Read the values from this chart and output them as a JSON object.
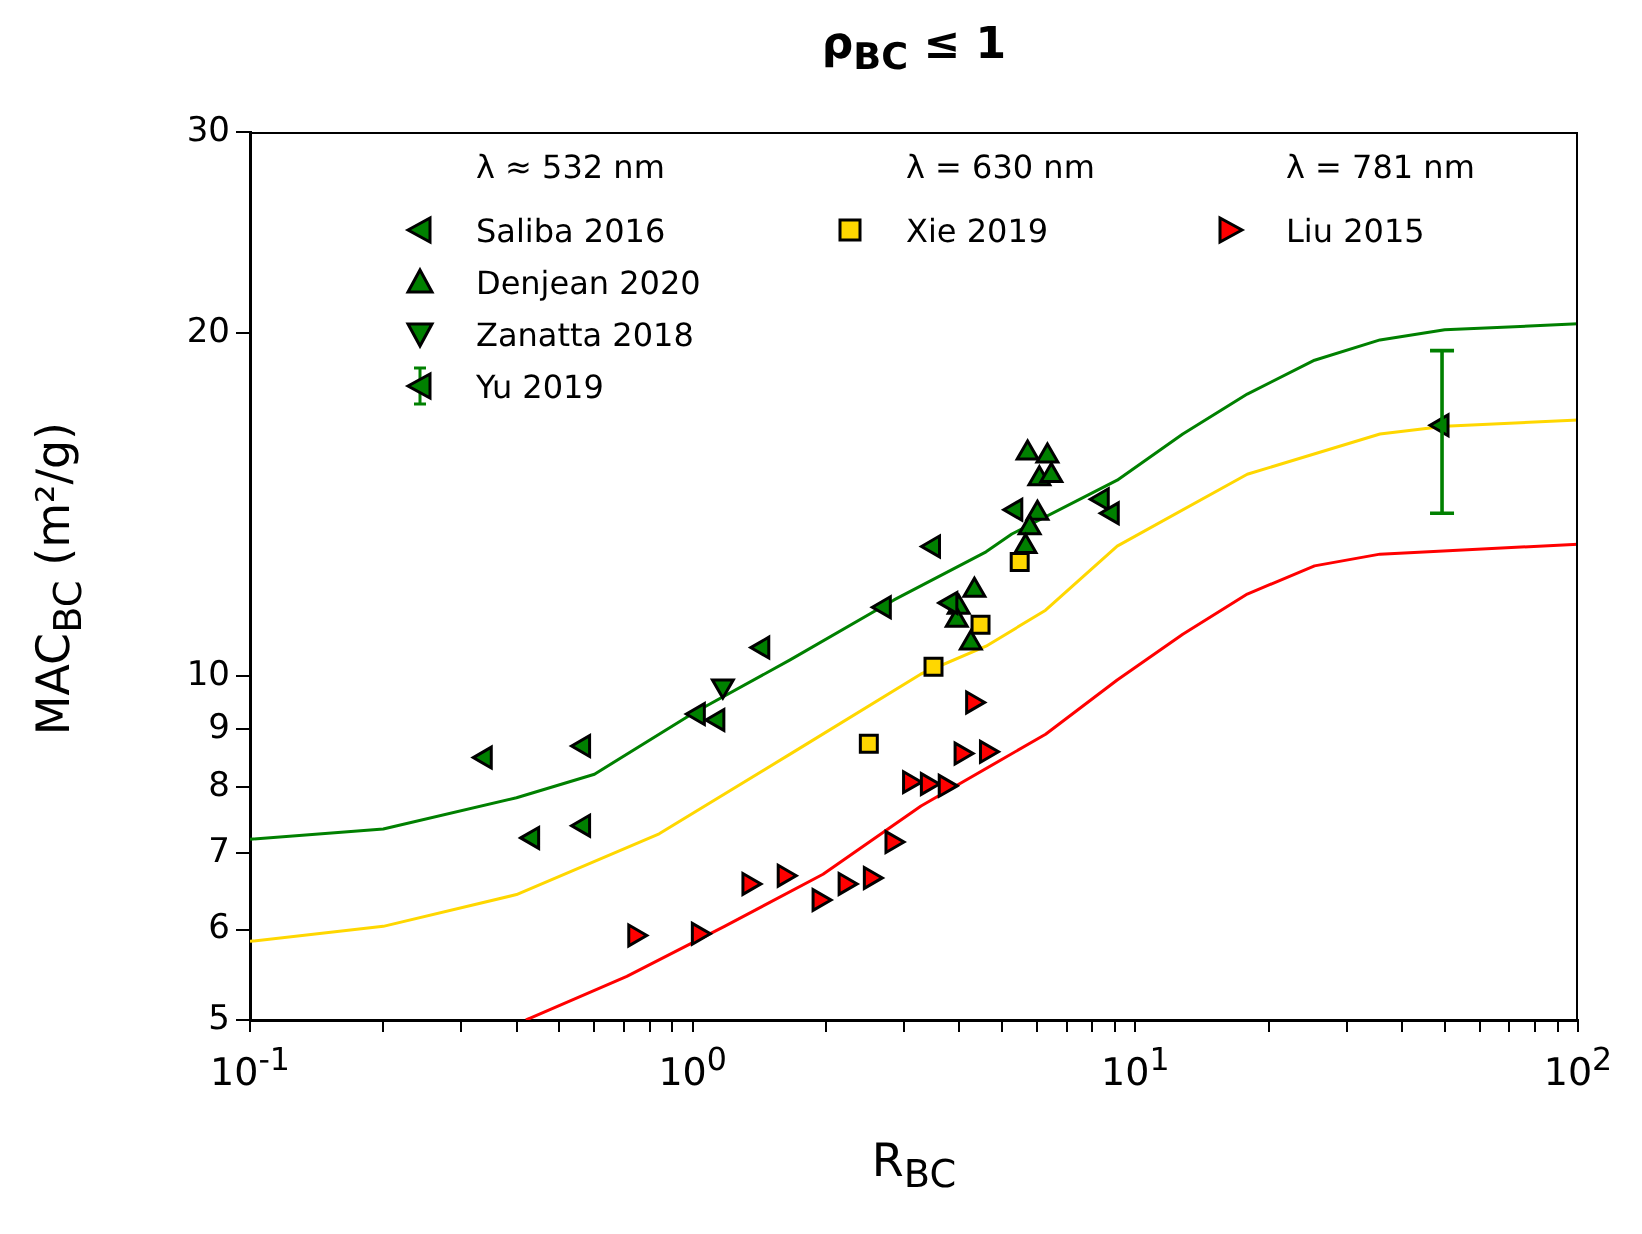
{
  "chart_data": {
    "type": "scatter",
    "title": "ρ$_{BC}$ ≤ 1",
    "xlabel": "R$_{BC}$",
    "ylabel": "MAC$_{BC}$ (m²/g)",
    "annotations": [
      "λ ≈ 532 nm",
      "λ = 630 nm",
      "λ = 781 nm"
    ],
    "log": "xy",
    "grid": false,
    "legend": "top",
    "xlim": [
      0.1,
      100
    ],
    "ylim": [
      5,
      30
    ],
    "xticks": [
      {
        "value": 0.1,
        "label": "10$^{-1}$"
      },
      {
        "value": 0.2,
        "label": null
      },
      {
        "value": 0.3,
        "label": null
      },
      {
        "value": 0.4,
        "label": null
      },
      {
        "value": 0.5,
        "label": null
      },
      {
        "value": 0.6,
        "label": null
      },
      {
        "value": 0.7,
        "label": null
      },
      {
        "value": 0.8,
        "label": null
      },
      {
        "value": 0.9,
        "label": null
      },
      {
        "value": 1,
        "label": "10$^{0}$"
      },
      {
        "value": 2,
        "label": null
      },
      {
        "value": 3,
        "label": null
      },
      {
        "value": 4,
        "label": null
      },
      {
        "value": 5,
        "label": null
      },
      {
        "value": 6,
        "label": null
      },
      {
        "value": 7,
        "label": null
      },
      {
        "value": 8,
        "label": null
      },
      {
        "value": 9,
        "label": null
      },
      {
        "value": 10,
        "label": "10$^{1}$"
      },
      {
        "value": 20,
        "label": null
      },
      {
        "value": 30,
        "label": null
      },
      {
        "value": 40,
        "label": null
      },
      {
        "value": 50,
        "label": null
      },
      {
        "value": 60,
        "label": null
      },
      {
        "value": 70,
        "label": null
      },
      {
        "value": 80,
        "label": null
      },
      {
        "value": 90,
        "label": null
      },
      {
        "value": 100,
        "label": "10$^{2}$"
      }
    ],
    "yticks": [
      5,
      6,
      7,
      8,
      9,
      10,
      20,
      30
    ],
    "series": [
      {
        "name": "Saliba 2016",
        "color": "#008000",
        "marker": "triangle-left",
        "x": [
          0.34,
          0.435,
          0.567,
          0.567,
          1.03,
          1.14,
          1.44,
          2.71,
          3.5,
          3.83,
          5.37,
          8.42,
          8.87
        ],
        "values": [
          8.49,
          7.22,
          8.69,
          7.4,
          9.27,
          9.16,
          10.6,
          11.5,
          13.0,
          11.6,
          14.0,
          14.3,
          13.9
        ]
      },
      {
        "name": "Denjean 2020",
        "color": "#008000",
        "marker": "triangle",
        "x": [
          5.71,
          6.33,
          6.07,
          6.46,
          6.01,
          5.77,
          5.65,
          4.33,
          3.99,
          3.95,
          4.25
        ],
        "values": [
          15.7,
          15.6,
          14.9,
          15.0,
          13.9,
          13.5,
          13.0,
          11.9,
          11.5,
          11.2,
          10.7
        ]
      },
      {
        "name": "Zanatta 2018",
        "color": "#008000",
        "marker": "triangle-down",
        "x": [
          1.17
        ],
        "values": [
          9.81
        ]
      },
      {
        "name": "Yu 2019",
        "color": "#008000",
        "marker": "triangle-left",
        "x": [
          49.3
        ],
        "values": [
          16.6
        ],
        "errors": [
          [
            13.9,
            19.3
          ]
        ]
      },
      {
        "name": "Xie 2019",
        "color": "#ffd700",
        "marker": "square",
        "x": [
          2.5,
          3.5,
          4.47,
          5.48
        ],
        "values": [
          8.73,
          10.2,
          11.1,
          12.6
        ]
      },
      {
        "name": "Liu 2015",
        "color": "#ff0000",
        "marker": "triangle-right",
        "x": [
          0.74,
          1.03,
          1.34,
          1.61,
          1.93,
          2.21,
          2.52,
          2.82,
          3.09,
          3.39,
          3.72,
          4.04,
          4.61,
          4.29
        ],
        "values": [
          5.93,
          5.95,
          6.58,
          6.69,
          6.37,
          6.58,
          6.66,
          7.16,
          8.08,
          8.05,
          8.02,
          8.56,
          8.59,
          9.49
        ]
      },
      {
        "type": "line",
        "color": "#008000",
        "marker": "none",
        "x": [
          0.1,
          0.2,
          0.4,
          0.6,
          1.0,
          1.66,
          2.85,
          4.6,
          5.26,
          9.1,
          12.8,
          17.9,
          25.4,
          35.7,
          50,
          100
        ],
        "values": [
          7.2,
          7.35,
          7.83,
          8.21,
          9.28,
          10.34,
          11.67,
          12.86,
          13.33,
          14.86,
          16.31,
          17.68,
          18.93,
          19.72,
          20.13,
          20.37
        ]
      },
      {
        "type": "line",
        "color": "#ffd700",
        "marker": "none",
        "x": [
          0.1,
          0.2,
          0.4,
          0.84,
          1.66,
          3.28,
          4.6,
          6.27,
          9.1,
          17.9,
          35.7,
          50,
          100
        ],
        "values": [
          5.86,
          6.04,
          6.44,
          7.28,
          8.55,
          10.05,
          10.63,
          11.43,
          13.01,
          15.04,
          16.31,
          16.57,
          16.78
        ]
      },
      {
        "type": "line",
        "color": "#ff0000",
        "marker": "none",
        "x": [
          0.42,
          0.71,
          1.18,
          1.97,
          3.28,
          6.27,
          9.1,
          12.8,
          17.9,
          25.4,
          35.7,
          100
        ],
        "values": [
          5.0,
          5.46,
          6.04,
          6.71,
          7.7,
          8.9,
          9.93,
          10.89,
          11.81,
          12.5,
          12.8,
          13.06
        ]
      }
    ]
  }
}
